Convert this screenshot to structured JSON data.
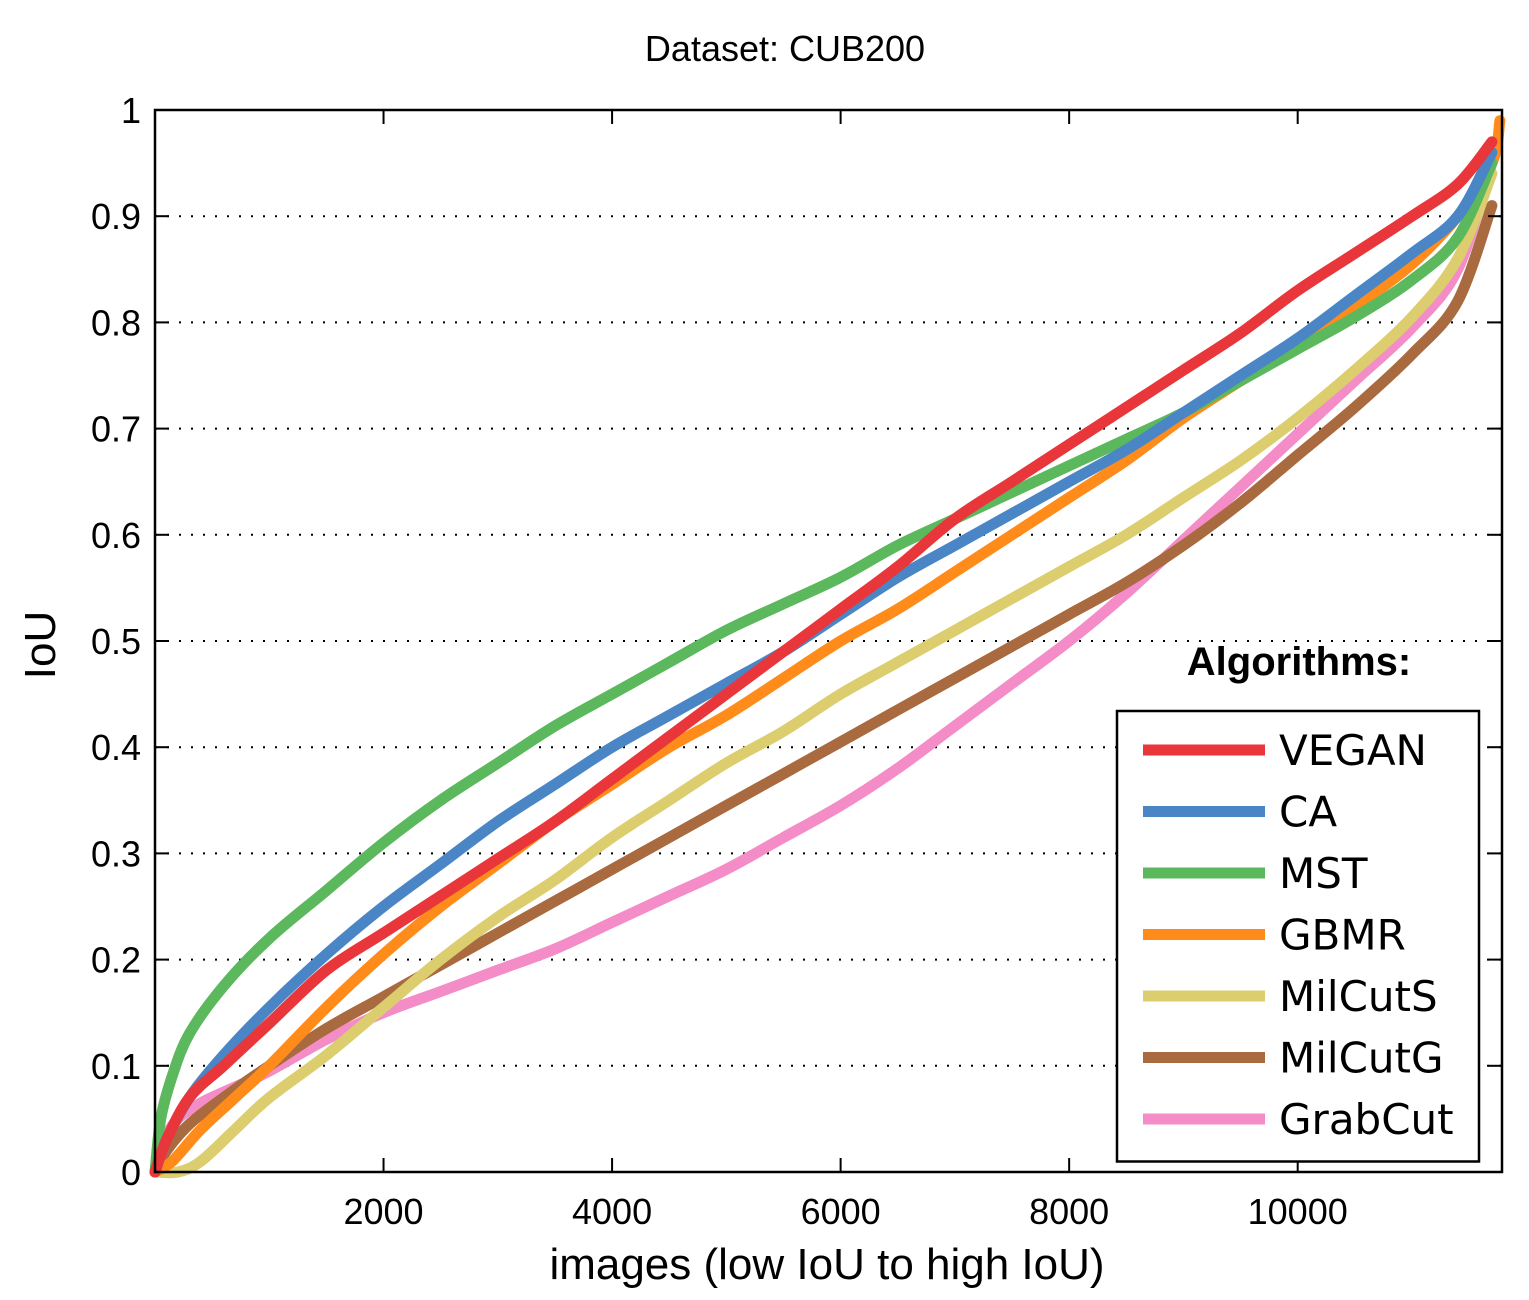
{
  "chart_data": {
    "type": "line",
    "title": "Dataset: CUB200",
    "xlabel": "images (low IoU to high IoU)",
    "ylabel": "IoU",
    "xlim": [
      0,
      11788
    ],
    "ylim": [
      0,
      1
    ],
    "xticks": [
      2000,
      4000,
      6000,
      8000,
      10000
    ],
    "yticks": [
      0,
      0.1,
      0.2,
      0.3,
      0.4,
      0.5,
      0.6,
      0.7,
      0.8,
      0.9,
      1
    ],
    "ytick_labels": [
      "0",
      "0.1",
      "0.2",
      "0.3",
      "0.4",
      "0.5",
      "0.6",
      "0.7",
      "0.8",
      "0.9",
      "1"
    ],
    "grid": "horizontal-dotted",
    "legend": {
      "title": "Algorithms:",
      "position": "bottom-right"
    },
    "series": [
      {
        "name": "VEGAN",
        "color": "#e8363a",
        "x": [
          0,
          100,
          300,
          600,
          1000,
          1500,
          2000,
          2500,
          3000,
          3500,
          4000,
          4500,
          5000,
          5500,
          6000,
          6500,
          7000,
          7500,
          8000,
          8500,
          9000,
          9500,
          10000,
          10500,
          11000,
          11400,
          11700
        ],
        "y": [
          0,
          0.03,
          0.07,
          0.1,
          0.14,
          0.19,
          0.225,
          0.26,
          0.295,
          0.33,
          0.37,
          0.41,
          0.45,
          0.49,
          0.53,
          0.57,
          0.615,
          0.65,
          0.685,
          0.72,
          0.755,
          0.79,
          0.83,
          0.865,
          0.9,
          0.93,
          0.97
        ]
      },
      {
        "name": "CA",
        "color": "#4a86c5",
        "x": [
          0,
          100,
          300,
          600,
          1000,
          1500,
          2000,
          2500,
          3000,
          3500,
          4000,
          4500,
          5000,
          5500,
          6000,
          6500,
          7000,
          7500,
          8000,
          8500,
          9000,
          9500,
          10000,
          10500,
          11000,
          11400,
          11700
        ],
        "y": [
          0,
          0.03,
          0.07,
          0.11,
          0.155,
          0.205,
          0.25,
          0.29,
          0.33,
          0.365,
          0.4,
          0.43,
          0.46,
          0.49,
          0.525,
          0.56,
          0.59,
          0.62,
          0.65,
          0.68,
          0.715,
          0.75,
          0.785,
          0.825,
          0.865,
          0.9,
          0.96
        ]
      },
      {
        "name": "MST",
        "color": "#5cb85c",
        "x": [
          0,
          50,
          150,
          300,
          600,
          1000,
          1500,
          2000,
          2500,
          3000,
          3500,
          4000,
          4500,
          5000,
          5500,
          6000,
          6500,
          7000,
          7500,
          8000,
          8500,
          9000,
          9500,
          10000,
          10500,
          11000,
          11400,
          11700
        ],
        "y": [
          0,
          0.05,
          0.09,
          0.13,
          0.175,
          0.22,
          0.265,
          0.31,
          0.35,
          0.385,
          0.42,
          0.45,
          0.48,
          0.51,
          0.535,
          0.56,
          0.59,
          0.615,
          0.64,
          0.665,
          0.69,
          0.715,
          0.745,
          0.775,
          0.805,
          0.84,
          0.88,
          0.95
        ]
      },
      {
        "name": "GBMR",
        "color": "#ff8c1a",
        "x": [
          0,
          150,
          400,
          700,
          1000,
          1500,
          2000,
          2500,
          3000,
          3500,
          4000,
          4500,
          5000,
          5500,
          6000,
          6500,
          7000,
          7500,
          8000,
          8500,
          9000,
          9500,
          10000,
          10500,
          11000,
          11400,
          11700,
          11770
        ],
        "y": [
          0,
          0.01,
          0.04,
          0.07,
          0.1,
          0.155,
          0.205,
          0.25,
          0.29,
          0.33,
          0.365,
          0.4,
          0.43,
          0.465,
          0.5,
          0.53,
          0.565,
          0.6,
          0.635,
          0.67,
          0.71,
          0.745,
          0.78,
          0.815,
          0.855,
          0.9,
          0.95,
          0.99
        ]
      },
      {
        "name": "MilCutS",
        "color": "#dccd6e",
        "x": [
          0,
          200,
          400,
          700,
          1000,
          1500,
          2000,
          2500,
          3000,
          3500,
          4000,
          4500,
          5000,
          5500,
          6000,
          6500,
          7000,
          7500,
          8000,
          8500,
          9000,
          9500,
          10000,
          10500,
          11000,
          11400,
          11700
        ],
        "y": [
          0,
          0.0,
          0.01,
          0.04,
          0.07,
          0.11,
          0.155,
          0.2,
          0.24,
          0.275,
          0.315,
          0.35,
          0.385,
          0.415,
          0.45,
          0.48,
          0.51,
          0.54,
          0.57,
          0.6,
          0.635,
          0.67,
          0.71,
          0.755,
          0.805,
          0.86,
          0.94
        ]
      },
      {
        "name": "MilCutG",
        "color": "#a86a3e",
        "x": [
          0,
          100,
          300,
          600,
          1000,
          1500,
          2000,
          2500,
          3000,
          3500,
          4000,
          4500,
          5000,
          5500,
          6000,
          6500,
          7000,
          7500,
          8000,
          8500,
          9000,
          9500,
          10000,
          10500,
          11000,
          11400,
          11700
        ],
        "y": [
          0,
          0.02,
          0.045,
          0.07,
          0.1,
          0.135,
          0.165,
          0.195,
          0.225,
          0.255,
          0.285,
          0.315,
          0.345,
          0.375,
          0.405,
          0.435,
          0.465,
          0.495,
          0.525,
          0.555,
          0.59,
          0.63,
          0.675,
          0.72,
          0.77,
          0.82,
          0.91
        ]
      },
      {
        "name": "GrabCut",
        "color": "#f48cc7",
        "x": [
          0,
          80,
          200,
          400,
          700,
          1000,
          1500,
          2000,
          2500,
          3000,
          3500,
          4000,
          4500,
          5000,
          5500,
          6000,
          6500,
          7000,
          7500,
          8000,
          8500,
          9000,
          9500,
          10000,
          10500,
          11000,
          11400,
          11700
        ],
        "y": [
          0,
          0.03,
          0.05,
          0.065,
          0.08,
          0.095,
          0.125,
          0.15,
          0.17,
          0.19,
          0.21,
          0.235,
          0.26,
          0.285,
          0.315,
          0.345,
          0.38,
          0.42,
          0.46,
          0.5,
          0.545,
          0.595,
          0.645,
          0.695,
          0.745,
          0.795,
          0.85,
          0.95
        ]
      }
    ]
  }
}
